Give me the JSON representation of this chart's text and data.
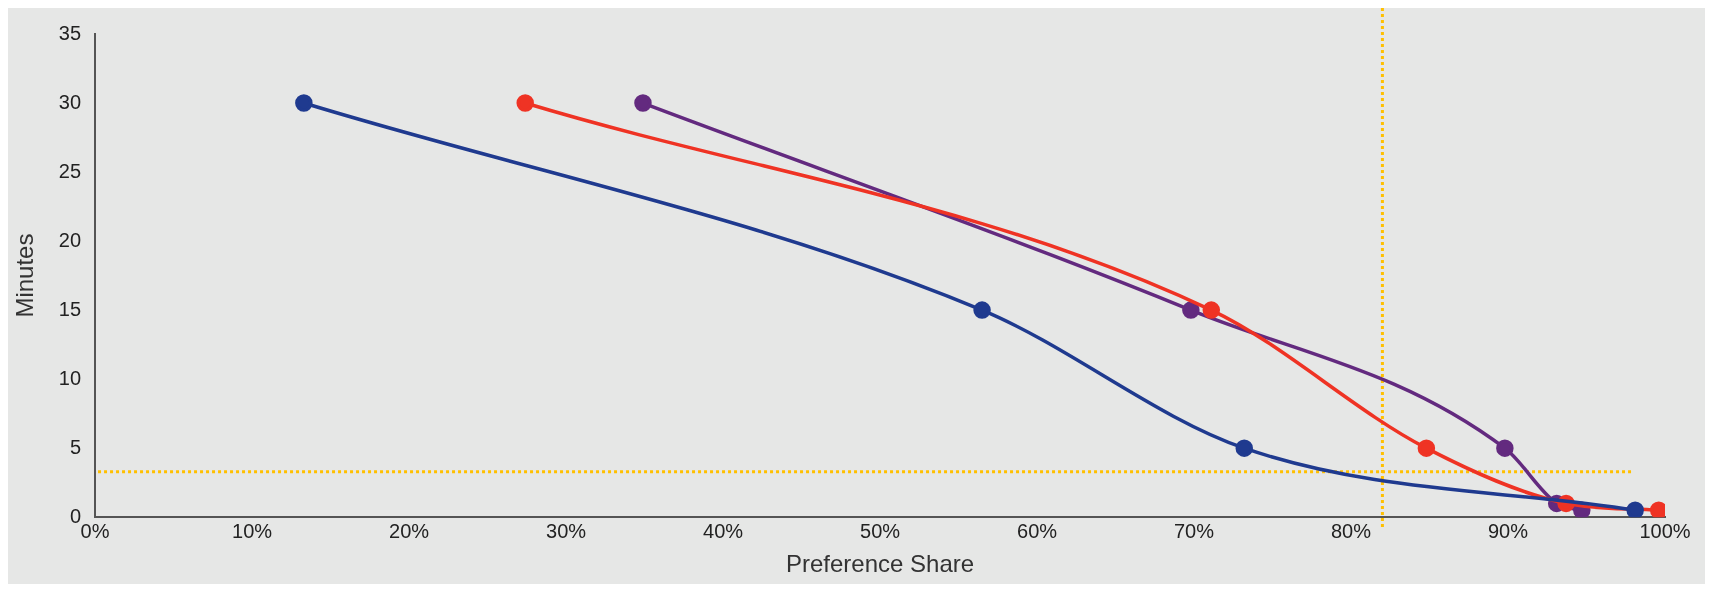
{
  "chart_data": {
    "type": "line",
    "xlabel": "Preference Share",
    "ylabel": "Minutes",
    "xlim": [
      0,
      100
    ],
    "xticks": [
      {
        "value": 0,
        "label": "0%"
      },
      {
        "value": 10,
        "label": "10%"
      },
      {
        "value": 20,
        "label": "20%"
      },
      {
        "value": 30,
        "label": "30%"
      },
      {
        "value": 40,
        "label": "40%"
      },
      {
        "value": 50,
        "label": "50%"
      },
      {
        "value": 60,
        "label": "60%"
      },
      {
        "value": 70,
        "label": "70%"
      },
      {
        "value": 80,
        "label": "80%"
      },
      {
        "value": 90,
        "label": "90%"
      },
      {
        "value": 100,
        "label": "100%"
      }
    ],
    "ylim": [
      0,
      35
    ],
    "yticks": [
      0,
      5,
      10,
      15,
      20,
      25,
      30,
      35
    ],
    "grid": false,
    "legend": false,
    "marker": "circle",
    "series": [
      {
        "color": "#1f3a8f",
        "x": [
          13.3,
          56.5,
          73.2,
          98.1
        ],
        "values": [
          30,
          15,
          5,
          0.5
        ]
      },
      {
        "color": "#ef3324",
        "x": [
          27.4,
          71.1,
          84.8,
          93.7,
          99.6
        ],
        "values": [
          30,
          15,
          5,
          1,
          0.5
        ]
      },
      {
        "color": "#632a7f",
        "x": [
          34.9,
          69.8,
          89.8,
          93.1,
          94.7
        ],
        "values": [
          30,
          15,
          5,
          1,
          0.5
        ]
      }
    ],
    "ref_lines": [
      {
        "axis": "y",
        "value": 3.3,
        "color": "#ffc000",
        "line_style": "dotted"
      },
      {
        "axis": "x",
        "value": 82,
        "color": "#ffc000",
        "line_style": "dotted"
      }
    ]
  }
}
